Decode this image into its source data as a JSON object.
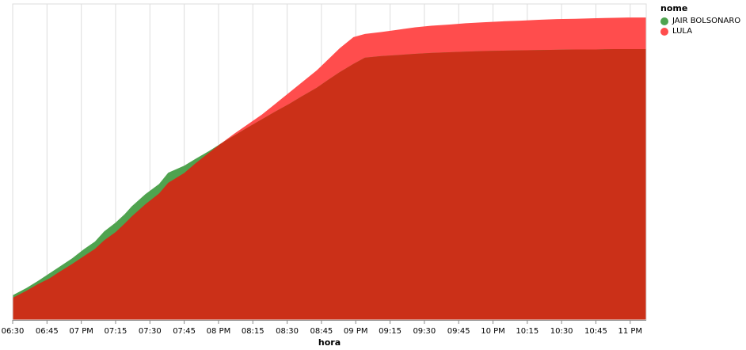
{
  "chart_data": {
    "type": "area",
    "stacked": false,
    "title": "",
    "xlabel": "hora",
    "ylabel": "",
    "x_tick_labels": [
      "06:30",
      "06:45",
      "07 PM",
      "07:15",
      "07:30",
      "07:45",
      "08 PM",
      "08:15",
      "08:30",
      "08:45",
      "09 PM",
      "09:15",
      "09:30",
      "09:45",
      "10 PM",
      "10:15",
      "10:30",
      "10:45",
      "11 PM"
    ],
    "x_ticks_minutes": [
      1110,
      1125,
      1140,
      1155,
      1170,
      1185,
      1200,
      1215,
      1230,
      1245,
      1260,
      1275,
      1290,
      1305,
      1320,
      1335,
      1350,
      1365,
      1380
    ],
    "xlim_minutes": [
      1110,
      1387
    ],
    "ylim": [
      0,
      100
    ],
    "y_axis_visible": false,
    "grid": "vertical",
    "legend": {
      "title": "nome",
      "position": "top-right"
    },
    "series": [
      {
        "name": "LULA",
        "color": "#ff4d4d",
        "x": [
          1110,
          1116,
          1121,
          1126,
          1130,
          1136,
          1141,
          1146,
          1150,
          1155,
          1159,
          1162,
          1168,
          1174,
          1178,
          1185,
          1190,
          1196,
          1201,
          1207,
          1213,
          1219,
          1225,
          1231,
          1237,
          1243,
          1248,
          1253,
          1259,
          1264,
          1271,
          1278,
          1286,
          1293,
          1301,
          1308,
          1316,
          1324,
          1332,
          1340,
          1348,
          1356,
          1365,
          1373,
          1379,
          1387
        ],
        "y": [
          7.0,
          9.2,
          11.3,
          13.1,
          15.0,
          17.7,
          20.1,
          22.5,
          25.2,
          27.8,
          30.5,
          32.7,
          36.6,
          40.0,
          43.4,
          46.5,
          49.6,
          53.0,
          55.8,
          59.0,
          62.0,
          65.0,
          68.5,
          72.0,
          75.5,
          79.0,
          82.5,
          86.0,
          89.5,
          90.5,
          91.1,
          91.8,
          92.6,
          93.1,
          93.5,
          93.9,
          94.2,
          94.5,
          94.7,
          95.0,
          95.2,
          95.3,
          95.5,
          95.6,
          95.7,
          95.7
        ]
      },
      {
        "name": "JAIR BOLSONARO",
        "color": "#4fa34f",
        "x": [
          1110,
          1116,
          1121,
          1126,
          1130,
          1136,
          1141,
          1146,
          1150,
          1155,
          1159,
          1162,
          1168,
          1174,
          1178,
          1185,
          1190,
          1196,
          1201,
          1207,
          1213,
          1219,
          1225,
          1231,
          1237,
          1243,
          1248,
          1253,
          1259,
          1264,
          1271,
          1278,
          1286,
          1293,
          1301,
          1308,
          1316,
          1324,
          1332,
          1340,
          1348,
          1356,
          1365,
          1373,
          1379,
          1387
        ],
        "y": [
          7.8,
          10.1,
          12.3,
          14.7,
          16.6,
          19.5,
          22.3,
          24.8,
          28.0,
          30.8,
          33.5,
          35.9,
          39.8,
          43.0,
          46.6,
          48.8,
          51.0,
          53.5,
          55.8,
          58.4,
          61.0,
          63.5,
          66.0,
          68.4,
          71.0,
          73.5,
          76.0,
          78.4,
          81.0,
          83.0,
          83.5,
          83.8,
          84.2,
          84.5,
          84.7,
          84.9,
          85.1,
          85.2,
          85.3,
          85.4,
          85.5,
          85.6,
          85.6,
          85.7,
          85.7,
          85.7
        ]
      }
    ]
  }
}
